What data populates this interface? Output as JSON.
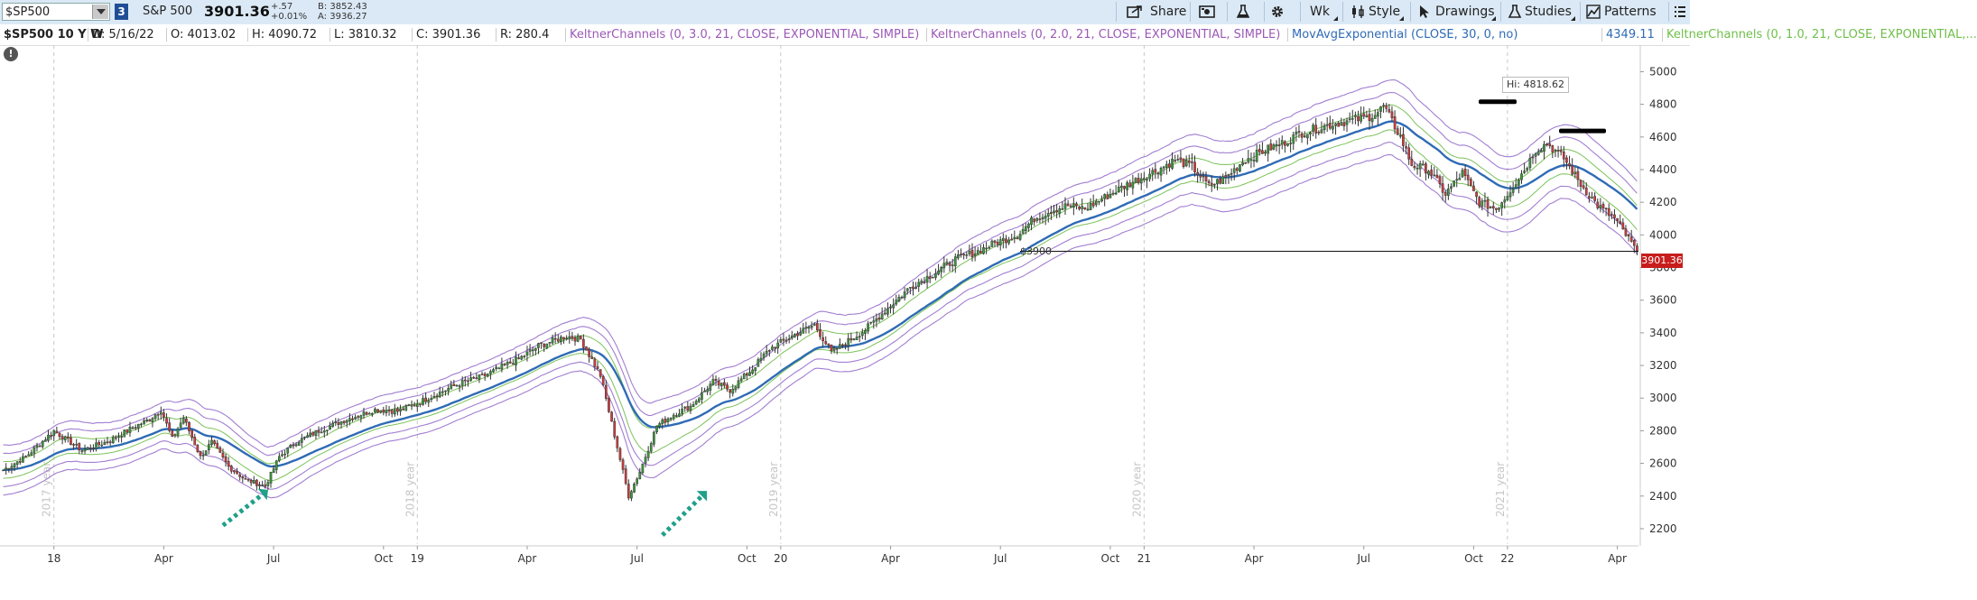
{
  "toolbar": {
    "symbol": "$SP500",
    "link_number": "3",
    "description": "S&P 500",
    "last_price": "3901.36",
    "net_change": "+.57",
    "pct_change": "+0.01%",
    "bid": "B: 3852.43",
    "ask": "A: 3936.27",
    "buttons": {
      "share": "Share",
      "aggregation": "Wk",
      "style": "Style",
      "drawings": "Drawings",
      "studies": "Studies",
      "patterns": "Patterns"
    }
  },
  "studybar": {
    "title": "$SP500 10 Y W",
    "date": "D: 5/16/22",
    "open": "O: 4013.02",
    "high": "H: 4090.72",
    "low": "L: 3810.32",
    "close": "C: 3901.36",
    "range": "R: 280.4",
    "studies": [
      {
        "label": "KeltnerChannels (0, 3.0, 21, CLOSE, EXPONENTIAL, SIMPLE)",
        "color": "#9b59b6"
      },
      {
        "label": "KeltnerChannels (0, 2.0, 21, CLOSE, EXPONENTIAL, SIMPLE)",
        "color": "#9b59b6"
      },
      {
        "label": "MovAvgExponential (CLOSE, 30, 0, no)",
        "color": "#2f6bb5"
      },
      {
        "label": "4349.11",
        "color": "#2f6bb5"
      },
      {
        "label": "KeltnerChannels (0, 1.0, 21, CLOSE, EXPONENTIAL,...",
        "color": "#6fbf4a"
      }
    ]
  },
  "annotations": {
    "hi_label": "Hi: 4818.62",
    "line_label": "$3900",
    "price_tag": "3901.36"
  },
  "colors": {
    "up": "#3c9a3c",
    "down": "#d23c3c",
    "keltner": "#a27ed1",
    "keltner_inner": "#7cc25a",
    "ema": "#2f6bb5",
    "arrow": "#20a08a",
    "toolbar_bg": "#dbe9f6"
  },
  "chart_data": {
    "type": "candlestick",
    "y_ticks": [
      "5000",
      "4800",
      "4600",
      "4400",
      "4200",
      "4000",
      "3800",
      "3600",
      "3400",
      "3200",
      "3000",
      "2800",
      "2600",
      "2400",
      "2200"
    ],
    "x_ticks": [
      "18",
      "Apr",
      "Jul",
      "Oct",
      "19",
      "Apr",
      "Jul",
      "Oct",
      "20",
      "Apr",
      "Jul",
      "Oct",
      "21",
      "Apr",
      "Jul",
      "Oct",
      "22",
      "Apr"
    ],
    "year_labels": [
      "2017 year",
      "2018 year",
      "2019 year",
      "2020 year",
      "2021 year"
    ],
    "ylim": [
      2150,
      5080
    ],
    "hline": 3900,
    "anchors": [
      [
        0,
        2560
      ],
      [
        8,
        2640
      ],
      [
        18,
        2800
      ],
      [
        22,
        2750
      ],
      [
        28,
        2680
      ],
      [
        38,
        2740
      ],
      [
        46,
        2820
      ],
      [
        52,
        2870
      ],
      [
        56,
        2930
      ],
      [
        60,
        2750
      ],
      [
        64,
        2880
      ],
      [
        70,
        2640
      ],
      [
        74,
        2730
      ],
      [
        80,
        2580
      ],
      [
        86,
        2500
      ],
      [
        93,
        2460
      ],
      [
        98,
        2640
      ],
      [
        104,
        2730
      ],
      [
        112,
        2800
      ],
      [
        122,
        2870
      ],
      [
        132,
        2930
      ],
      [
        140,
        2920
      ],
      [
        146,
        2960
      ],
      [
        152,
        3010
      ],
      [
        162,
        3090
      ],
      [
        170,
        3130
      ],
      [
        178,
        3200
      ],
      [
        184,
        3250
      ],
      [
        190,
        3320
      ],
      [
        200,
        3380
      ],
      [
        205,
        3360
      ],
      [
        212,
        3140
      ],
      [
        218,
        2700
      ],
      [
        222,
        2400
      ],
      [
        226,
        2550
      ],
      [
        232,
        2830
      ],
      [
        238,
        2900
      ],
      [
        244,
        2950
      ],
      [
        252,
        3100
      ],
      [
        258,
        3050
      ],
      [
        266,
        3180
      ],
      [
        272,
        3300
      ],
      [
        280,
        3380
      ],
      [
        288,
        3450
      ],
      [
        294,
        3280
      ],
      [
        300,
        3350
      ],
      [
        306,
        3420
      ],
      [
        314,
        3550
      ],
      [
        322,
        3680
      ],
      [
        330,
        3760
      ],
      [
        338,
        3850
      ],
      [
        346,
        3900
      ],
      [
        352,
        3950
      ],
      [
        360,
        4000
      ],
      [
        366,
        4100
      ],
      [
        372,
        4150
      ],
      [
        378,
        4180
      ],
      [
        384,
        4160
      ],
      [
        390,
        4220
      ],
      [
        398,
        4300
      ],
      [
        404,
        4350
      ],
      [
        410,
        4400
      ],
      [
        416,
        4460
      ],
      [
        422,
        4420
      ],
      [
        428,
        4300
      ],
      [
        434,
        4350
      ],
      [
        440,
        4450
      ],
      [
        448,
        4520
      ],
      [
        454,
        4560
      ],
      [
        460,
        4620
      ],
      [
        466,
        4650
      ],
      [
        472,
        4680
      ],
      [
        478,
        4700
      ],
      [
        484,
        4720
      ],
      [
        488,
        4750
      ],
      [
        490,
        4790
      ],
      [
        496,
        4600
      ],
      [
        500,
        4430
      ],
      [
        506,
        4400
      ],
      [
        512,
        4250
      ],
      [
        518,
        4380
      ],
      [
        524,
        4200
      ],
      [
        530,
        4160
      ],
      [
        534,
        4250
      ],
      [
        540,
        4400
      ],
      [
        544,
        4520
      ],
      [
        548,
        4560
      ],
      [
        554,
        4470
      ],
      [
        560,
        4310
      ],
      [
        566,
        4180
      ],
      [
        572,
        4100
      ],
      [
        576,
        4000
      ],
      [
        580,
        3900
      ]
    ],
    "arrows": [
      {
        "from_week": 78,
        "from_price": 2220,
        "to_week": 92,
        "to_price": 2410
      },
      {
        "from_week": 234,
        "from_price": 2160,
        "to_week": 248,
        "to_price": 2400
      }
    ]
  }
}
